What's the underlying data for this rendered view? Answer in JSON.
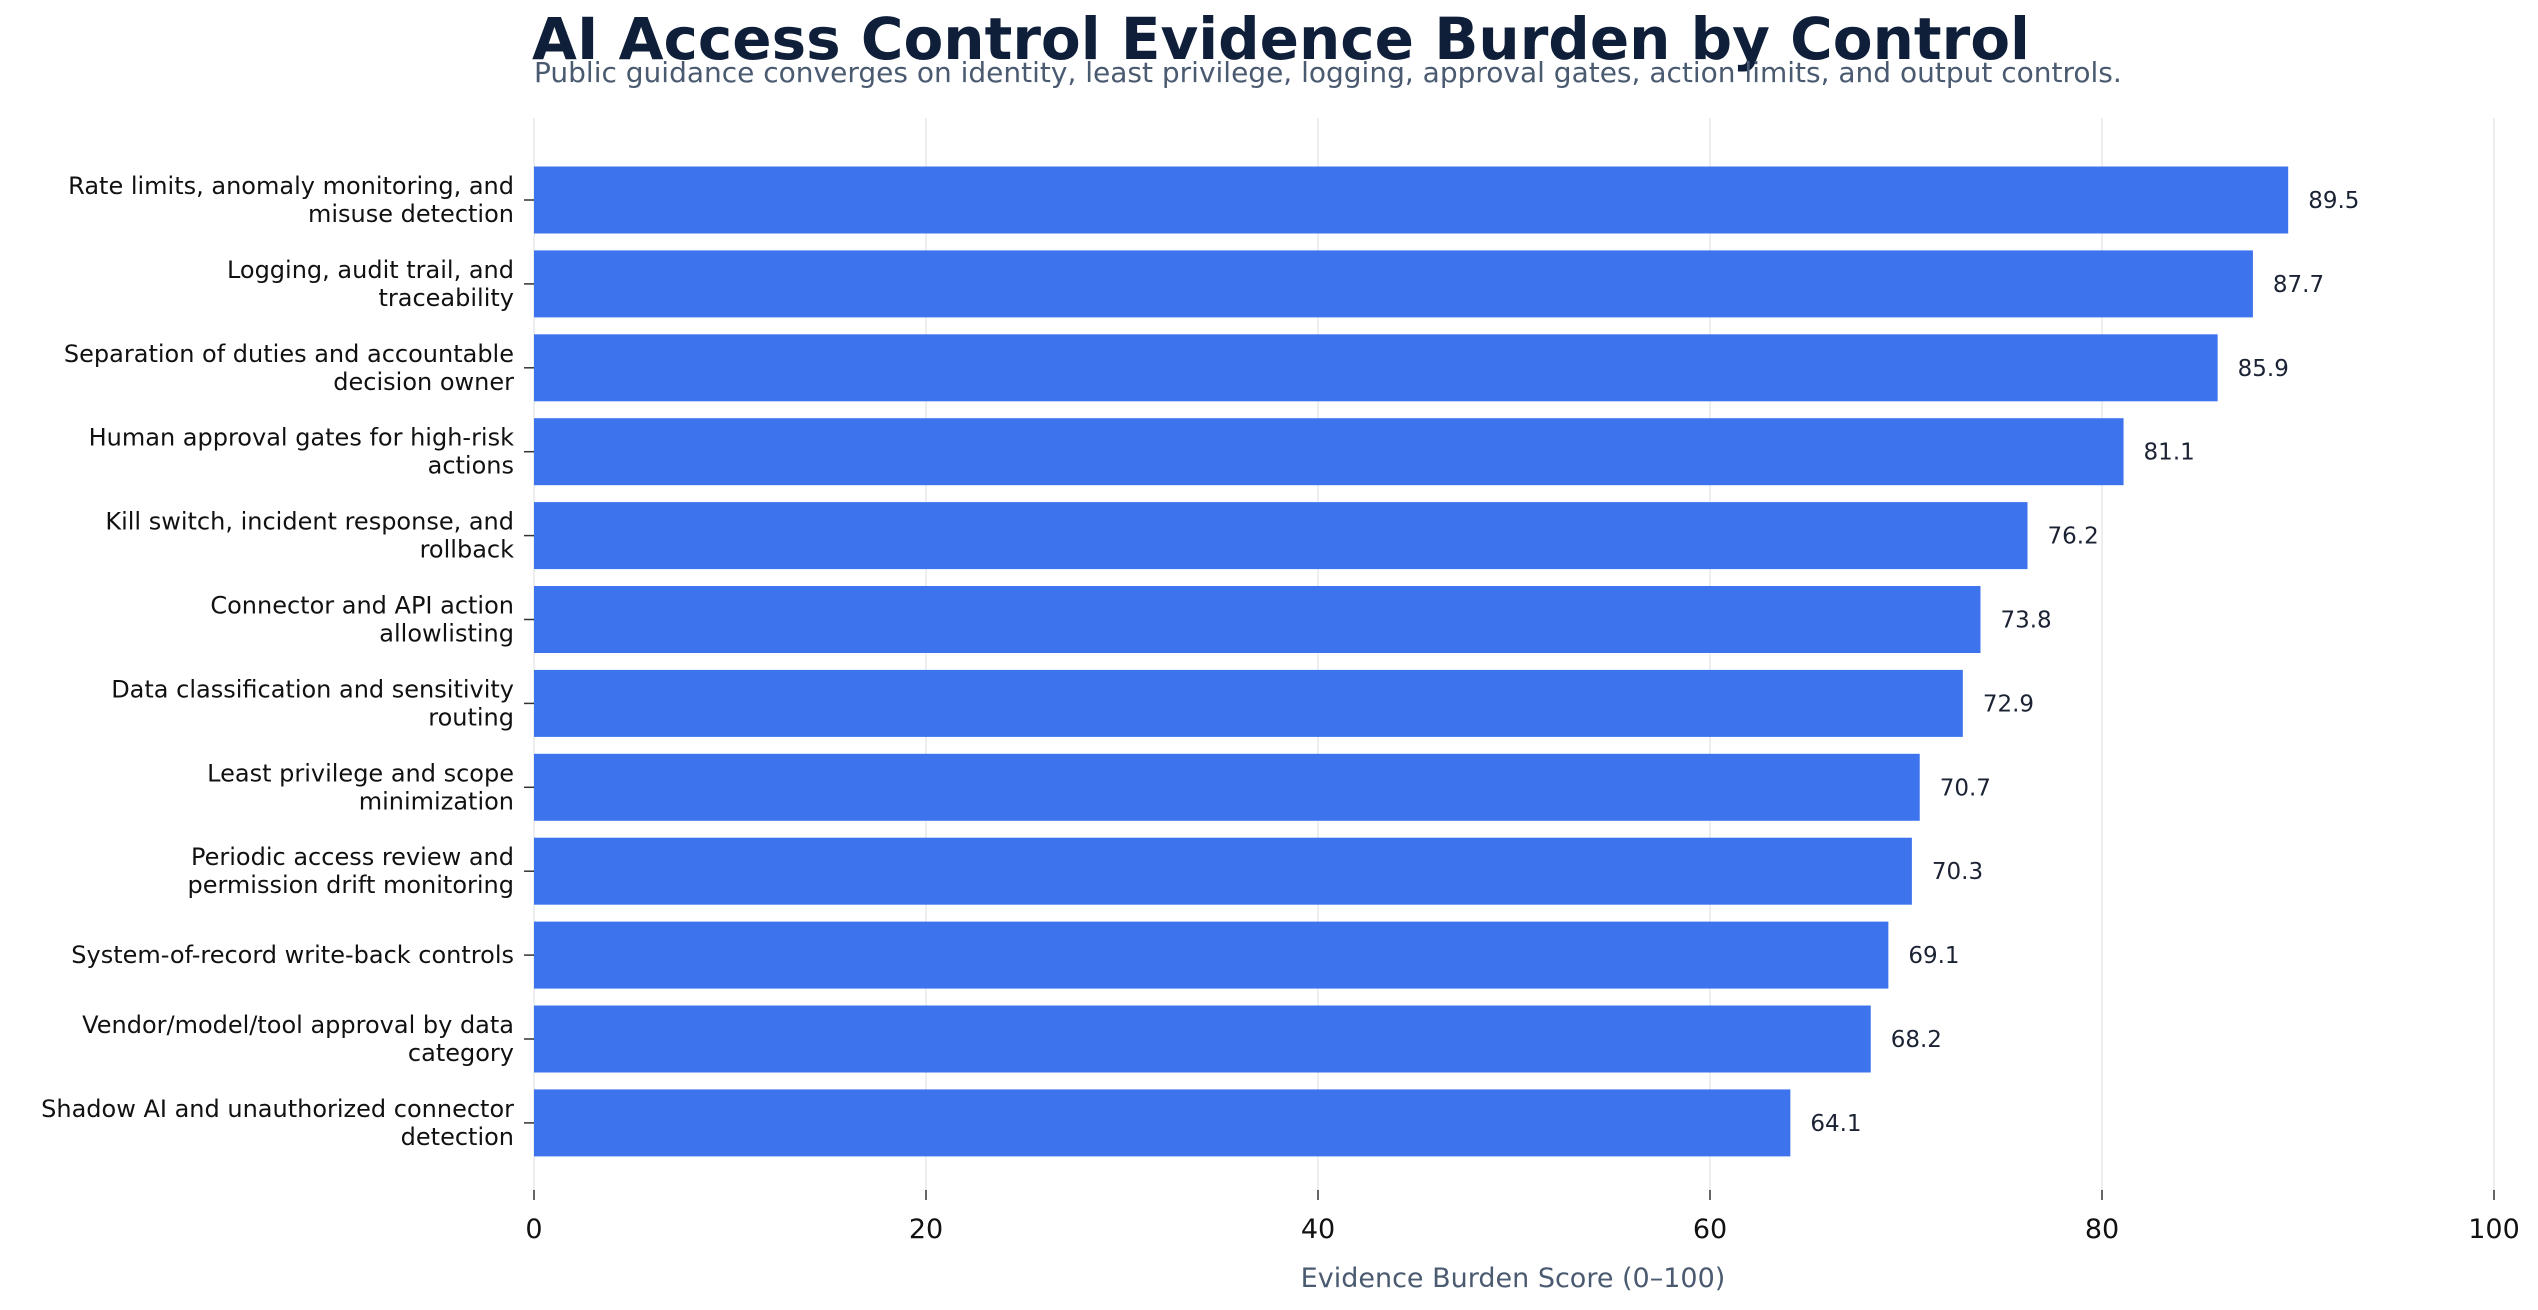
{
  "chart_data": {
    "type": "bar",
    "orientation": "horizontal",
    "title": "AI Access Control Evidence Burden by Control",
    "subtitle": "Public guidance converges on identity, least privilege, logging, approval gates, action limits, and output controls.",
    "xlabel": "Evidence Burden Score (0–100)",
    "ylabel": "",
    "xlim": [
      0,
      100
    ],
    "xticks": [
      0,
      20,
      40,
      60,
      80,
      100
    ],
    "grid": "vertical",
    "bar_color": "#3d74ee",
    "categories": [
      [
        "Rate limits, anomaly monitoring, and",
        "misuse detection"
      ],
      [
        "Logging, audit trail, and",
        "traceability"
      ],
      [
        "Separation of duties and accountable",
        "decision owner"
      ],
      [
        "Human approval gates for high-risk",
        "actions"
      ],
      [
        "Kill switch, incident response, and",
        "rollback"
      ],
      [
        "Connector and API action",
        "allowlisting"
      ],
      [
        "Data classification and sensitivity",
        "routing"
      ],
      [
        "Least privilege and scope",
        "minimization"
      ],
      [
        "Periodic access review and",
        "permission drift monitoring"
      ],
      [
        "System-of-record write-back controls"
      ],
      [
        "Vendor/model/tool approval by data",
        "category"
      ],
      [
        "Shadow AI and unauthorized connector",
        "detection"
      ]
    ],
    "values": [
      89.5,
      87.7,
      85.9,
      81.1,
      76.2,
      73.8,
      72.9,
      70.7,
      70.3,
      69.1,
      68.2,
      64.1
    ],
    "value_labels": [
      "89.5",
      "87.7",
      "85.9",
      "81.1",
      "76.2",
      "73.8",
      "72.9",
      "70.7",
      "70.3",
      "69.1",
      "68.2",
      "64.1"
    ]
  }
}
